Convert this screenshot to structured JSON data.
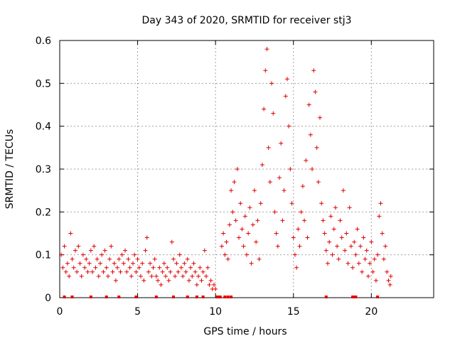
{
  "chart_data": {
    "type": "scatter",
    "title": "Day 343 of 2020, SRMTID for receiver stj3",
    "xlabel": "GPS time / hours",
    "ylabel": "SRMTID / TECUs",
    "xlim": [
      0,
      24
    ],
    "ylim": [
      0,
      0.6
    ],
    "x_ticks": [
      0,
      5,
      10,
      15,
      20
    ],
    "y_ticks": [
      0,
      0.1,
      0.2,
      0.3,
      0.4,
      0.5,
      0.6
    ],
    "x_tick_labels": [
      "0",
      "5",
      "10",
      "15",
      "20"
    ],
    "y_tick_labels": [
      "0",
      "0.1",
      "0.2",
      "0.3",
      "0.4",
      "0.5",
      "0.6"
    ],
    "grid": true,
    "marker": "plus",
    "color": "#e00000",
    "baseline_markers": [
      0.3,
      0.8,
      2.0,
      3.0,
      3.8,
      4.9,
      6.2,
      7.3,
      8.2,
      8.8,
      9.2,
      10.1,
      10.2,
      10.3,
      10.6,
      10.8,
      11.0,
      17.1,
      18.8,
      18.9,
      19.0,
      20.4
    ],
    "series": [
      {
        "name": "SRMTID",
        "points": [
          [
            0.1,
            0.1
          ],
          [
            0.2,
            0.07
          ],
          [
            0.3,
            0.12
          ],
          [
            0.4,
            0.06
          ],
          [
            0.5,
            0.08
          ],
          [
            0.6,
            0.05
          ],
          [
            0.7,
            0.15
          ],
          [
            0.8,
            0.09
          ],
          [
            0.9,
            0.07
          ],
          [
            1.0,
            0.11
          ],
          [
            1.1,
            0.06
          ],
          [
            1.2,
            0.12
          ],
          [
            1.3,
            0.08
          ],
          [
            1.4,
            0.05
          ],
          [
            1.5,
            0.1
          ],
          [
            1.6,
            0.07
          ],
          [
            1.7,
            0.09
          ],
          [
            1.8,
            0.06
          ],
          [
            1.9,
            0.08
          ],
          [
            2.0,
            0.11
          ],
          [
            2.1,
            0.06
          ],
          [
            2.2,
            0.12
          ],
          [
            2.3,
            0.07
          ],
          [
            2.4,
            0.09
          ],
          [
            2.5,
            0.05
          ],
          [
            2.6,
            0.08
          ],
          [
            2.7,
            0.1
          ],
          [
            2.8,
            0.06
          ],
          [
            2.9,
            0.11
          ],
          [
            3.0,
            0.07
          ],
          [
            3.1,
            0.05
          ],
          [
            3.2,
            0.09
          ],
          [
            3.3,
            0.12
          ],
          [
            3.4,
            0.06
          ],
          [
            3.5,
            0.08
          ],
          [
            3.6,
            0.04
          ],
          [
            3.7,
            0.07
          ],
          [
            3.8,
            0.09
          ],
          [
            3.9,
            0.06
          ],
          [
            4.0,
            0.1
          ],
          [
            4.1,
            0.08
          ],
          [
            4.2,
            0.11
          ],
          [
            4.3,
            0.06
          ],
          [
            4.4,
            0.09
          ],
          [
            4.5,
            0.07
          ],
          [
            4.6,
            0.05
          ],
          [
            4.7,
            0.08
          ],
          [
            4.8,
            0.1
          ],
          [
            4.9,
            0.06
          ],
          [
            5.0,
            0.09
          ],
          [
            5.1,
            0.07
          ],
          [
            5.2,
            0.05
          ],
          [
            5.3,
            0.08
          ],
          [
            5.4,
            0.04
          ],
          [
            5.5,
            0.11
          ],
          [
            5.6,
            0.14
          ],
          [
            5.7,
            0.06
          ],
          [
            5.8,
            0.08
          ],
          [
            5.9,
            0.05
          ],
          [
            6.0,
            0.07
          ],
          [
            6.1,
            0.09
          ],
          [
            6.2,
            0.05
          ],
          [
            6.3,
            0.04
          ],
          [
            6.4,
            0.07
          ],
          [
            6.5,
            0.03
          ],
          [
            6.6,
            0.06
          ],
          [
            6.7,
            0.08
          ],
          [
            6.8,
            0.05
          ],
          [
            6.9,
            0.07
          ],
          [
            7.0,
            0.04
          ],
          [
            7.1,
            0.06
          ],
          [
            7.2,
            0.13
          ],
          [
            7.3,
            0.09
          ],
          [
            7.4,
            0.05
          ],
          [
            7.5,
            0.08
          ],
          [
            7.6,
            0.06
          ],
          [
            7.7,
            0.1
          ],
          [
            7.8,
            0.07
          ],
          [
            7.9,
            0.05
          ],
          [
            8.0,
            0.08
          ],
          [
            8.1,
            0.06
          ],
          [
            8.2,
            0.09
          ],
          [
            8.3,
            0.04
          ],
          [
            8.4,
            0.07
          ],
          [
            8.5,
            0.05
          ],
          [
            8.6,
            0.08
          ],
          [
            8.7,
            0.06
          ],
          [
            8.8,
            0.03
          ],
          [
            8.9,
            0.05
          ],
          [
            9.0,
            0.07
          ],
          [
            9.1,
            0.04
          ],
          [
            9.2,
            0.06
          ],
          [
            9.3,
            0.11
          ],
          [
            9.4,
            0.05
          ],
          [
            9.5,
            0.07
          ],
          [
            9.6,
            0.03
          ],
          [
            9.7,
            0.04
          ],
          [
            9.8,
            0.02
          ],
          [
            9.9,
            0.03
          ],
          [
            10.0,
            0.02
          ],
          [
            10.4,
            0.12
          ],
          [
            10.5,
            0.15
          ],
          [
            10.6,
            0.1
          ],
          [
            10.7,
            0.13
          ],
          [
            10.8,
            0.09
          ],
          [
            10.9,
            0.17
          ],
          [
            11.0,
            0.25
          ],
          [
            11.1,
            0.2
          ],
          [
            11.2,
            0.27
          ],
          [
            11.3,
            0.18
          ],
          [
            11.4,
            0.3
          ],
          [
            11.5,
            0.14
          ],
          [
            11.6,
            0.22
          ],
          [
            11.7,
            0.16
          ],
          [
            11.8,
            0.12
          ],
          [
            11.9,
            0.19
          ],
          [
            12.0,
            0.1
          ],
          [
            12.1,
            0.15
          ],
          [
            12.2,
            0.21
          ],
          [
            12.3,
            0.08
          ],
          [
            12.4,
            0.17
          ],
          [
            12.5,
            0.25
          ],
          [
            12.6,
            0.13
          ],
          [
            12.7,
            0.18
          ],
          [
            12.8,
            0.09
          ],
          [
            12.9,
            0.22
          ],
          [
            13.0,
            0.31
          ],
          [
            13.1,
            0.44
          ],
          [
            13.2,
            0.53
          ],
          [
            13.3,
            0.58
          ],
          [
            13.4,
            0.35
          ],
          [
            13.5,
            0.27
          ],
          [
            13.6,
            0.5
          ],
          [
            13.7,
            0.43
          ],
          [
            13.8,
            0.2
          ],
          [
            13.9,
            0.15
          ],
          [
            14.0,
            0.12
          ],
          [
            14.1,
            0.28
          ],
          [
            14.2,
            0.36
          ],
          [
            14.3,
            0.18
          ],
          [
            14.4,
            0.25
          ],
          [
            14.5,
            0.47
          ],
          [
            14.6,
            0.51
          ],
          [
            14.7,
            0.4
          ],
          [
            14.8,
            0.3
          ],
          [
            14.9,
            0.22
          ],
          [
            15.0,
            0.14
          ],
          [
            15.1,
            0.1
          ],
          [
            15.2,
            0.07
          ],
          [
            15.3,
            0.16
          ],
          [
            15.4,
            0.12
          ],
          [
            15.5,
            0.2
          ],
          [
            15.6,
            0.26
          ],
          [
            15.7,
            0.18
          ],
          [
            15.8,
            0.32
          ],
          [
            15.9,
            0.14
          ],
          [
            16.0,
            0.45
          ],
          [
            16.1,
            0.38
          ],
          [
            16.2,
            0.3
          ],
          [
            16.3,
            0.53
          ],
          [
            16.4,
            0.48
          ],
          [
            16.5,
            0.35
          ],
          [
            16.6,
            0.27
          ],
          [
            16.7,
            0.42
          ],
          [
            16.8,
            0.22
          ],
          [
            16.9,
            0.18
          ],
          [
            17.0,
            0.15
          ],
          [
            17.1,
            0.11
          ],
          [
            17.2,
            0.08
          ],
          [
            17.3,
            0.13
          ],
          [
            17.4,
            0.19
          ],
          [
            17.5,
            0.1
          ],
          [
            17.6,
            0.16
          ],
          [
            17.7,
            0.21
          ],
          [
            17.8,
            0.12
          ],
          [
            17.9,
            0.09
          ],
          [
            18.0,
            0.18
          ],
          [
            18.1,
            0.14
          ],
          [
            18.2,
            0.25
          ],
          [
            18.3,
            0.11
          ],
          [
            18.4,
            0.15
          ],
          [
            18.5,
            0.08
          ],
          [
            18.6,
            0.21
          ],
          [
            18.7,
            0.12
          ],
          [
            18.8,
            0.07
          ],
          [
            18.9,
            0.13
          ],
          [
            19.0,
            0.1
          ],
          [
            19.1,
            0.16
          ],
          [
            19.2,
            0.08
          ],
          [
            19.3,
            0.12
          ],
          [
            19.4,
            0.06
          ],
          [
            19.5,
            0.14
          ],
          [
            19.6,
            0.09
          ],
          [
            19.7,
            0.11
          ],
          [
            19.8,
            0.05
          ],
          [
            19.9,
            0.08
          ],
          [
            20.0,
            0.13
          ],
          [
            20.1,
            0.06
          ],
          [
            20.2,
            0.09
          ],
          [
            20.3,
            0.04
          ],
          [
            20.4,
            0.1
          ],
          [
            20.5,
            0.19
          ],
          [
            20.6,
            0.22
          ],
          [
            20.7,
            0.15
          ],
          [
            20.8,
            0.09
          ],
          [
            20.9,
            0.12
          ],
          [
            21.0,
            0.06
          ],
          [
            21.1,
            0.04
          ],
          [
            21.2,
            0.03
          ],
          [
            21.25,
            0.05
          ]
        ]
      }
    ]
  }
}
